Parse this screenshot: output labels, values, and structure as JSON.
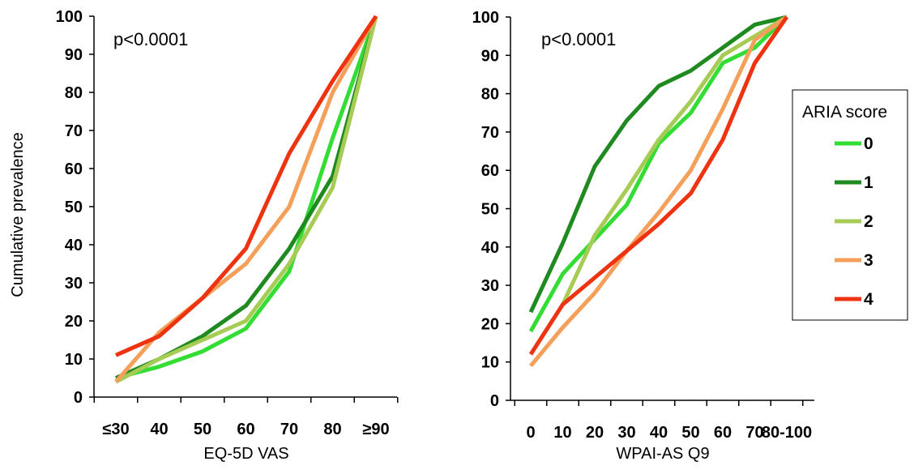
{
  "chart_data": [
    {
      "type": "line",
      "ylabel": "Cumulative prevalence",
      "xlabel": "EQ-5D VAS",
      "annotation": "p<0.0001",
      "ylim": [
        0,
        100
      ],
      "yticks": [
        "0",
        "10",
        "20",
        "30",
        "40",
        "50",
        "60",
        "70",
        "80",
        "90",
        "100"
      ],
      "categories": [
        "≤30",
        "40",
        "50",
        "60",
        "70",
        "80",
        "≥90"
      ],
      "series": [
        {
          "name": "0",
          "color": "#33dd33",
          "values": [
            5,
            8,
            12,
            18,
            33,
            68,
            100
          ]
        },
        {
          "name": "1",
          "color": "#1f8a1f",
          "values": [
            5,
            10,
            16,
            24,
            39,
            58,
            100
          ]
        },
        {
          "name": "2",
          "color": "#a6cc55",
          "values": [
            4,
            10,
            15,
            20,
            35,
            55,
            100
          ]
        },
        {
          "name": "3",
          "color": "#f5a05a",
          "values": [
            4,
            17,
            26,
            35,
            50,
            80,
            100
          ]
        },
        {
          "name": "4",
          "color": "#ee3311",
          "values": [
            11,
            16,
            26,
            39,
            64,
            83,
            100
          ]
        }
      ]
    },
    {
      "type": "line",
      "xlabel": "WPAI-AS Q9",
      "annotation": "p<0.0001",
      "ylim": [
        0,
        100
      ],
      "yticks": [
        "0",
        "10",
        "20",
        "30",
        "40",
        "50",
        "60",
        "70",
        "80",
        "90",
        "100"
      ],
      "categories": [
        "0",
        "10",
        "20",
        "30",
        "40",
        "50",
        "60",
        "70",
        "80-100"
      ],
      "series": [
        {
          "name": "0",
          "color": "#33dd33",
          "values": [
            18,
            33,
            42,
            51,
            67,
            75,
            88,
            92,
            100
          ]
        },
        {
          "name": "1",
          "color": "#1f8a1f",
          "values": [
            23,
            41,
            61,
            73,
            82,
            86,
            92,
            98,
            100
          ]
        },
        {
          "name": "2",
          "color": "#a6cc55",
          "values": [
            null,
            25,
            43,
            55,
            68,
            78,
            90,
            95,
            100
          ]
        },
        {
          "name": "3",
          "color": "#f5a05a",
          "values": [
            9,
            19,
            28,
            39,
            49,
            60,
            76,
            94,
            100
          ]
        },
        {
          "name": "4",
          "color": "#ee3311",
          "values": [
            12,
            25,
            32,
            39,
            46,
            54,
            68,
            88,
            100
          ]
        }
      ],
      "legend": {
        "title": "ARIA score",
        "position": "right"
      }
    }
  ]
}
